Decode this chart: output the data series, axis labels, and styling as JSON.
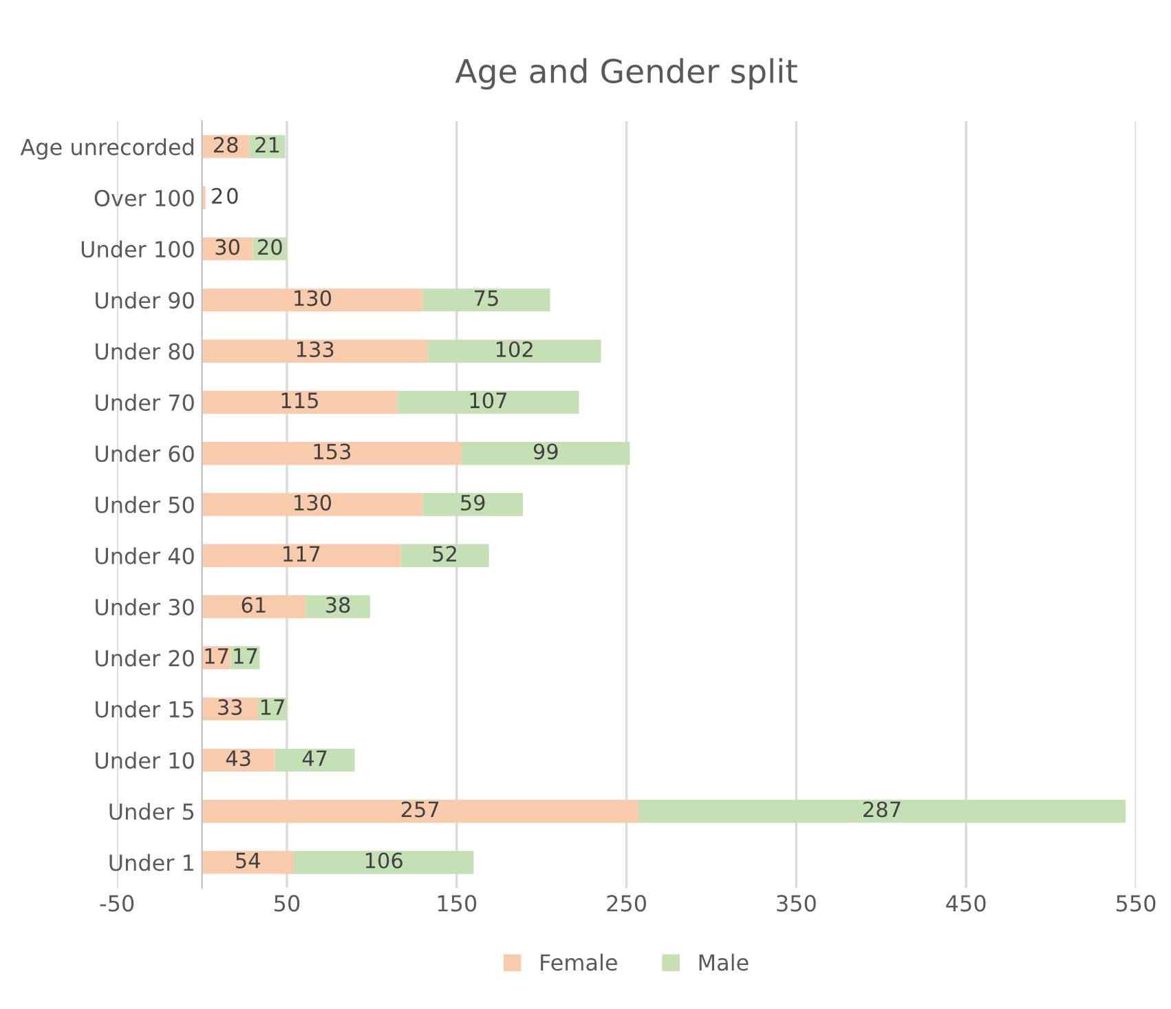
{
  "chart_data": {
    "type": "bar",
    "orientation": "horizontal",
    "stacked": true,
    "title": "Age and Gender split",
    "categories": [
      "Age unrecorded",
      "Over 100",
      "Under 100",
      "Under 90",
      "Under 80",
      "Under 70",
      "Under 60",
      "Under 50",
      "Under 40",
      "Under 30",
      "Under 20",
      "Under 15",
      "Under 10",
      "Under 5",
      "Under 1"
    ],
    "series": [
      {
        "name": "Female",
        "color": "#f8cbad",
        "values": [
          28,
          2,
          30,
          130,
          133,
          115,
          153,
          130,
          117,
          61,
          17,
          33,
          43,
          257,
          54
        ]
      },
      {
        "name": "Male",
        "color": "#c5e0b4",
        "values": [
          21,
          0,
          20,
          75,
          102,
          107,
          99,
          59,
          52,
          38,
          17,
          17,
          47,
          287,
          106
        ]
      }
    ],
    "xlim": [
      -50,
      550
    ],
    "xticks": [
      -50,
      50,
      150,
      250,
      350,
      450,
      550
    ],
    "grid": "x",
    "legend": "bottom",
    "data_labels": true
  }
}
